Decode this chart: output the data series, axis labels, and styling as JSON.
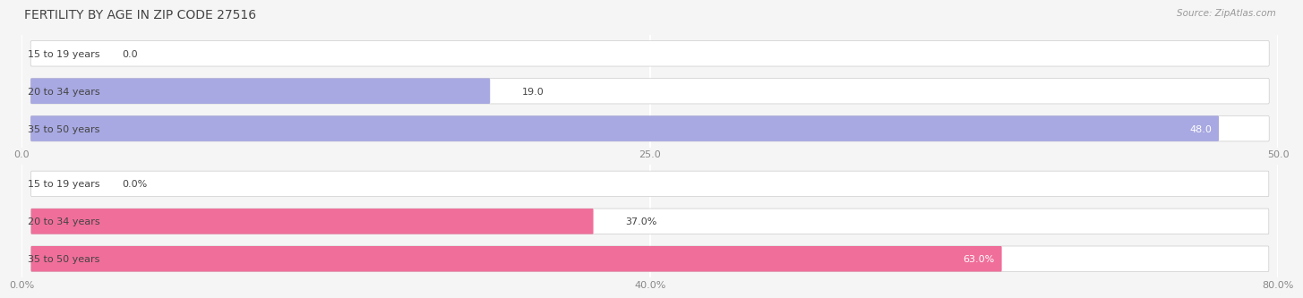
{
  "title": "FERTILITY BY AGE IN ZIP CODE 27516",
  "source": "Source: ZipAtlas.com",
  "top_chart": {
    "categories": [
      "15 to 19 years",
      "20 to 34 years",
      "35 to 50 years"
    ],
    "values": [
      0.0,
      19.0,
      48.0
    ],
    "xlim": [
      0,
      50
    ],
    "xticks": [
      0.0,
      25.0,
      50.0
    ],
    "xtick_labels": [
      "0.0",
      "25.0",
      "50.0"
    ],
    "bar_color": "#9999dd",
    "bg_bar_color": "#e8e8f0",
    "bar_height": 0.68,
    "label_threshold_pct": 0.7
  },
  "bottom_chart": {
    "categories": [
      "15 to 19 years",
      "20 to 34 years",
      "35 to 50 years"
    ],
    "values": [
      0.0,
      37.0,
      63.0
    ],
    "xlim": [
      0,
      80
    ],
    "xticks": [
      0.0,
      40.0,
      80.0
    ],
    "xtick_labels": [
      "0.0%",
      "40.0%",
      "80.0%"
    ],
    "bar_color": "#ee5588",
    "bg_bar_color": "#f0e8ec",
    "bar_height": 0.68,
    "label_threshold_pct": 0.7
  },
  "title_fontsize": 10,
  "source_fontsize": 7.5,
  "label_fontsize": 8,
  "value_fontsize": 8,
  "title_color": "#444444",
  "label_color": "#444444",
  "tick_color": "#888888",
  "bg_main": "#f5f5f5",
  "grid_color": "#ffffff"
}
